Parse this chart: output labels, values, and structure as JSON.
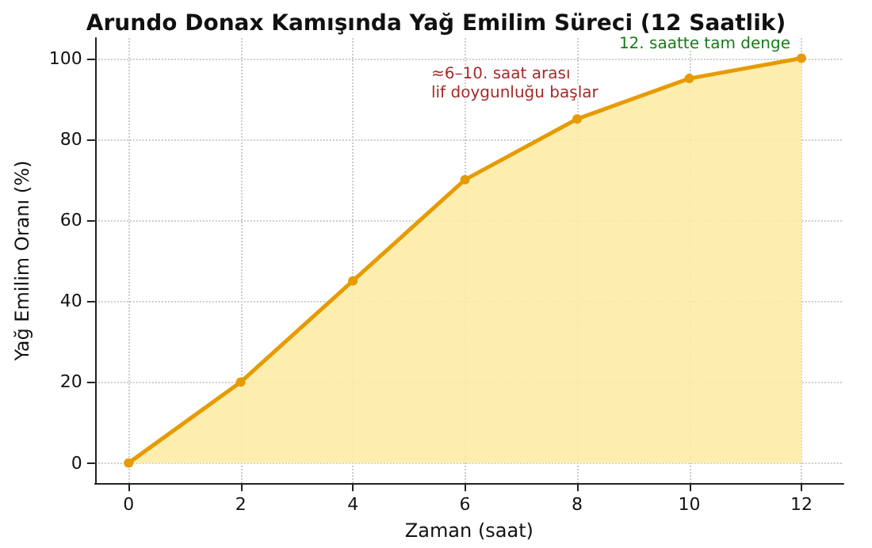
{
  "chart_data": {
    "type": "area",
    "title": "Arundo Donax Kamışında Yağ Emilim Süreci (12 Saatlik)",
    "xlabel": "Zaman (saat)",
    "ylabel": "Yağ Emilim Oranı (%)",
    "x": [
      0,
      2,
      4,
      6,
      8,
      10,
      12
    ],
    "series": [
      {
        "color": "#e69b00",
        "values": [
          0,
          20,
          45,
          70,
          85,
          95,
          100
        ]
      }
    ],
    "xlim": [
      -0.6,
      12.75
    ],
    "xticks": [
      0,
      2,
      4,
      6,
      8,
      10,
      12
    ],
    "ylim": [
      -5,
      105
    ],
    "yticks": [
      0,
      20,
      40,
      60,
      80,
      100
    ],
    "grid": true,
    "marker": "circle",
    "line_style": "solid",
    "annotations": [
      "≈6–10. saat arası\nlif doygunluğu başlar",
      {
        "text": "12. saatte tam denge",
        "x": 12,
        "y": 100
      }
    ]
  }
}
